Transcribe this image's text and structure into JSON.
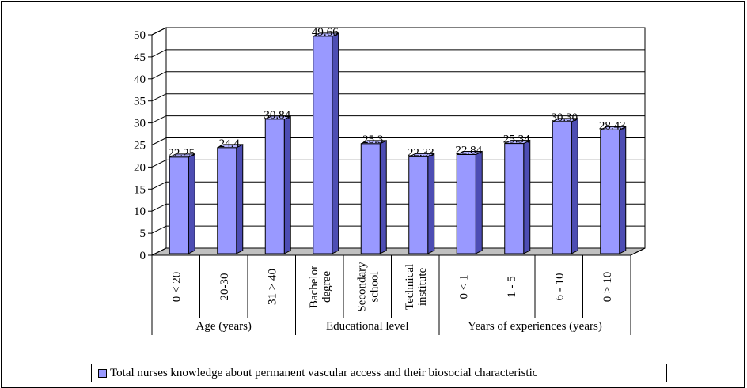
{
  "chart_data": {
    "type": "bar",
    "groups": [
      {
        "label": "Age (years)",
        "categories": [
          "0 < 20",
          "20-30",
          "31 > 40"
        ]
      },
      {
        "label": "Educational level",
        "categories": [
          "Bachelor degree",
          "Secondary school",
          "Technical institute"
        ]
      },
      {
        "label": "Years of experiences (years)",
        "categories": [
          "0 < 1",
          "1 - 5",
          "6 - 10",
          "0 > 10"
        ]
      }
    ],
    "categories": [
      "0 < 20",
      "20-30",
      "31 > 40",
      "Bachelor degree",
      "Secondary school",
      "Technical institute",
      "0 < 1",
      "1 - 5",
      "6 - 10",
      "0 > 10"
    ],
    "category_lines": [
      [
        "0 < 20"
      ],
      [
        "20-30"
      ],
      [
        "31 > 40"
      ],
      [
        "Bachelor",
        "degree"
      ],
      [
        "Secondary",
        "school"
      ],
      [
        "Technical",
        "institute"
      ],
      [
        "0 < 1"
      ],
      [
        "1 - 5"
      ],
      [
        "6 - 10"
      ],
      [
        "0 > 10"
      ]
    ],
    "series": [
      {
        "name": "Total nurses knowledge about permanent vascular access and their biosocial characteristic",
        "values": [
          22.25,
          24.4,
          30.84,
          49.66,
          25.3,
          22.33,
          22.84,
          25.34,
          30.3,
          28.43
        ],
        "labels": [
          "22.25",
          "24.4",
          "30.84",
          "49.66",
          "25.3",
          "22.33",
          "22.84",
          "25.34",
          "30.30",
          "28.43"
        ]
      }
    ],
    "ylim": [
      0,
      50
    ],
    "yticks": [
      "0",
      "5",
      "10",
      "15",
      "20",
      "25",
      "30",
      "35",
      "40",
      "45",
      "50"
    ],
    "grid": true,
    "legend_position": "bottom",
    "colors": {
      "bar_front": "#9999ff",
      "bar_side": "#4d4db3",
      "bar_top": "#b3b3ff",
      "wall": "#ffffff",
      "floor": "#c0c0c0"
    }
  }
}
